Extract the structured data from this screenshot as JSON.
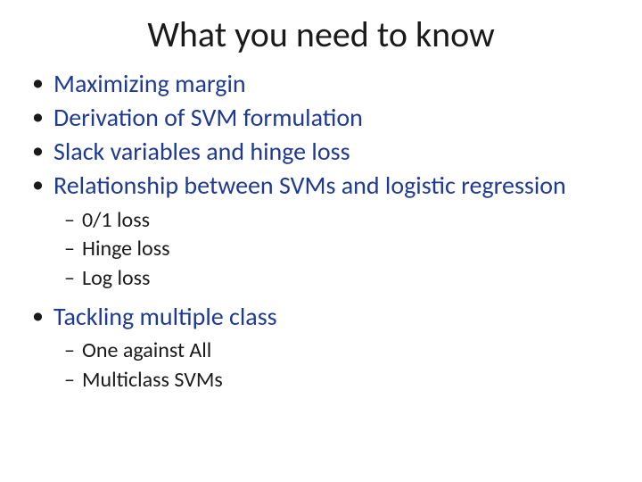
{
  "title": "What you need to know",
  "bullets": [
    {
      "text": "Maximizing margin"
    },
    {
      "text": "Derivation of SVM formulation"
    },
    {
      "text": "Slack variables and hinge loss"
    },
    {
      "text": "Relationship between SVMs and logistic regression"
    }
  ],
  "sub_a": [
    {
      "text": "0/1 loss"
    },
    {
      "text": "Hinge loss"
    },
    {
      "text": "Log loss"
    }
  ],
  "bullets2": [
    {
      "text": "Tackling multiple class"
    }
  ],
  "sub_b": [
    {
      "text": "One against All"
    },
    {
      "text": "Multiclass SVMs"
    }
  ],
  "colors": {
    "bullet_text": "#1f3a93",
    "sub_text": "#1a1a1a",
    "title_text": "#1a1a1a",
    "background": "#ffffff"
  },
  "typography": {
    "title_fontsize": 40,
    "bullet_fontsize": 28,
    "sub_fontsize": 24,
    "font_family": "Calibri"
  }
}
